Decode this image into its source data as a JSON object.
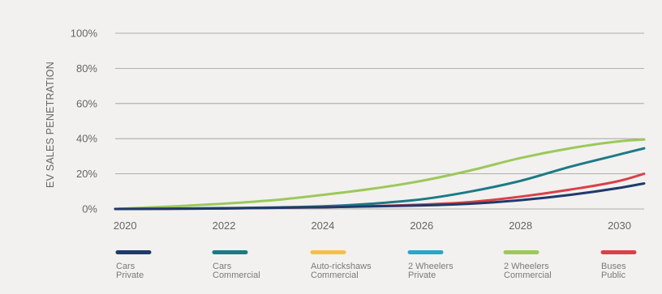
{
  "chart_data": {
    "type": "line",
    "ylabel": "EV SALES PENETRATION",
    "xlabel": "",
    "title": "",
    "x_ticks": [
      "2020",
      "2022",
      "2024",
      "2026",
      "2028",
      "2030"
    ],
    "y_ticks": [
      "0%",
      "20%",
      "40%",
      "60%",
      "80%",
      "100%"
    ],
    "xlim": [
      2019.8,
      2030.5
    ],
    "ylim": [
      0,
      100
    ],
    "grid": true,
    "legend_position": "bottom",
    "series": [
      {
        "name": "Cars Private",
        "label_lines": [
          "Cars",
          "Private"
        ],
        "color": "#1f3a6b",
        "x": [
          2019.8,
          2022,
          2024,
          2026,
          2027,
          2028,
          2029,
          2030,
          2030.5
        ],
        "values": [
          0,
          0.3,
          1,
          2,
          3,
          5,
          8,
          12,
          14.5
        ]
      },
      {
        "name": "Cars Commercial",
        "label_lines": [
          "Cars",
          "Commercial"
        ],
        "color": "#1c7a87",
        "x": [
          2019.8,
          2022,
          2024,
          2025,
          2026,
          2027,
          2028,
          2029,
          2030,
          2030.5
        ],
        "values": [
          0,
          0.5,
          1.5,
          3,
          5.5,
          10,
          16,
          24,
          31,
          34.5
        ]
      },
      {
        "name": "Auto-rickshaws Commercial",
        "label_lines": [
          "Auto-rickshaws",
          "Commercial"
        ],
        "color": "#f5c04a",
        "x": [],
        "values": []
      },
      {
        "name": "2 Wheelers Private",
        "label_lines": [
          "2 Wheelers",
          "Private"
        ],
        "color": "#2aa6c9",
        "x": [],
        "values": []
      },
      {
        "name": "2 Wheelers Commercial",
        "label_lines": [
          "2 Wheelers",
          "Commercial"
        ],
        "color": "#9cc85a",
        "x": [
          2019.8,
          2021,
          2022,
          2023,
          2024,
          2025,
          2026,
          2027,
          2028,
          2029,
          2030,
          2030.5
        ],
        "values": [
          0,
          1.5,
          3,
          5,
          8,
          11.5,
          16,
          22,
          29,
          34.5,
          38.5,
          39.5
        ]
      },
      {
        "name": "Buses Public",
        "label_lines": [
          "Buses",
          "Public"
        ],
        "color": "#d94149",
        "x": [
          2019.8,
          2022,
          2024,
          2026,
          2027,
          2028,
          2029,
          2030,
          2030.5
        ],
        "values": [
          0,
          0.3,
          1,
          2.5,
          4,
          7,
          11,
          16,
          20
        ]
      }
    ]
  }
}
